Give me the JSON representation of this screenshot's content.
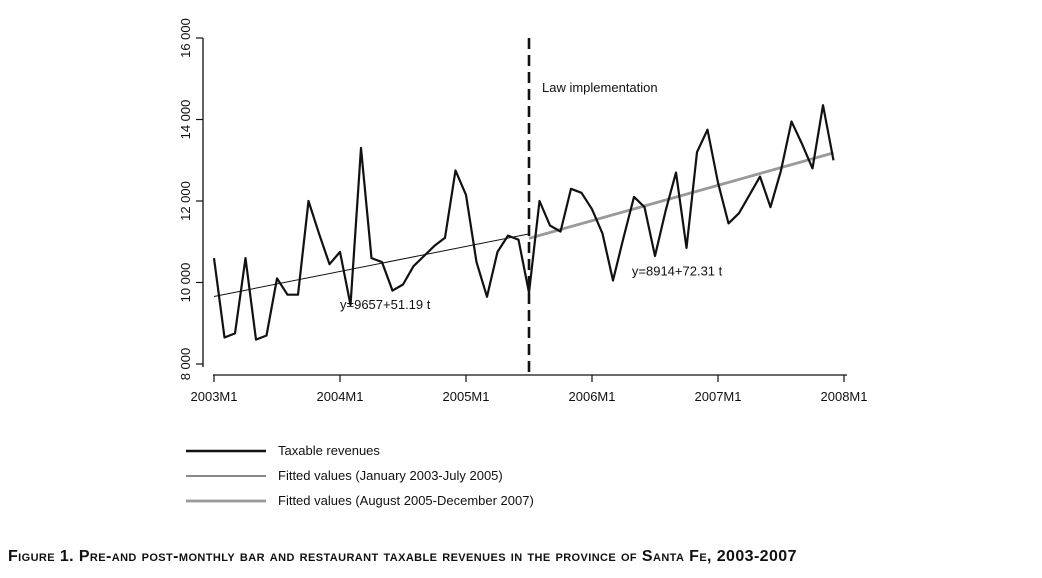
{
  "chart_data": {
    "type": "line",
    "title": "",
    "xlabel": "",
    "ylabel": "",
    "ylim": [
      8000,
      16000
    ],
    "y_ticks": [
      8000,
      10000,
      12000,
      14000,
      16000
    ],
    "y_tick_labels": [
      "8 000",
      "10 000",
      "12 000",
      "14 000",
      "16 000"
    ],
    "x_ticks": [
      0,
      12,
      24,
      36,
      48,
      60
    ],
    "x_tick_labels": [
      "2003M1",
      "2004M1",
      "2005M1",
      "2006M1",
      "2007M1",
      "2008M1"
    ],
    "xlim": [
      0,
      60
    ],
    "grid": false,
    "legend_position": "bottom-left",
    "series": [
      {
        "name": "Taxable revenues",
        "color": "#111111",
        "style": "thick",
        "x": [
          0,
          1,
          2,
          3,
          4,
          5,
          6,
          7,
          8,
          9,
          10,
          11,
          12,
          13,
          14,
          15,
          16,
          17,
          18,
          19,
          20,
          21,
          22,
          23,
          24,
          25,
          26,
          27,
          28,
          29,
          30,
          31,
          32,
          33,
          34,
          35,
          36,
          37,
          38,
          39,
          40,
          41,
          42,
          43,
          44,
          45,
          46,
          47,
          48,
          49,
          50,
          51,
          52,
          53,
          54,
          55,
          56,
          57,
          58,
          59
        ],
        "values": [
          10600,
          8650,
          8750,
          10600,
          8600,
          8700,
          10100,
          9700,
          9700,
          12000,
          11200,
          10450,
          10750,
          9450,
          13300,
          10600,
          10500,
          9800,
          9950,
          10400,
          10650,
          10900,
          11100,
          12750,
          12150,
          10500,
          9650,
          10750,
          11150,
          11050,
          9750,
          12000,
          11400,
          11250,
          12300,
          12200,
          11800,
          11200,
          10050,
          11100,
          12100,
          11850,
          10650,
          11750,
          12700,
          10850,
          13200,
          13750,
          12450,
          11450,
          11700,
          12150,
          12600,
          11850,
          12750,
          13950,
          13400,
          12800,
          14350,
          13000
        ]
      },
      {
        "name": "Fitted values (January 2003-July 2005)",
        "color": "#111111",
        "style": "thin",
        "x": [
          0,
          30
        ],
        "values": [
          9657,
          11193
        ]
      },
      {
        "name": "Fitted values (August 2005-December 2007)",
        "color": "#999999",
        "style": "medium",
        "x": [
          30,
          59
        ],
        "values": [
          11083,
          13180
        ]
      }
    ],
    "vertical_marker": {
      "x": 30,
      "label": "Law implementation"
    },
    "annotations": [
      {
        "text": "y=9657+51.19 t",
        "x": 12,
        "y": 9350
      },
      {
        "text": "y=8914+72.31 t",
        "x": 39.8,
        "y": 10170
      }
    ]
  },
  "caption": "Figure 1. Pre-and post-monthly bar and restaurant taxable revenues in the province of Santa Fe, 2003-2007"
}
